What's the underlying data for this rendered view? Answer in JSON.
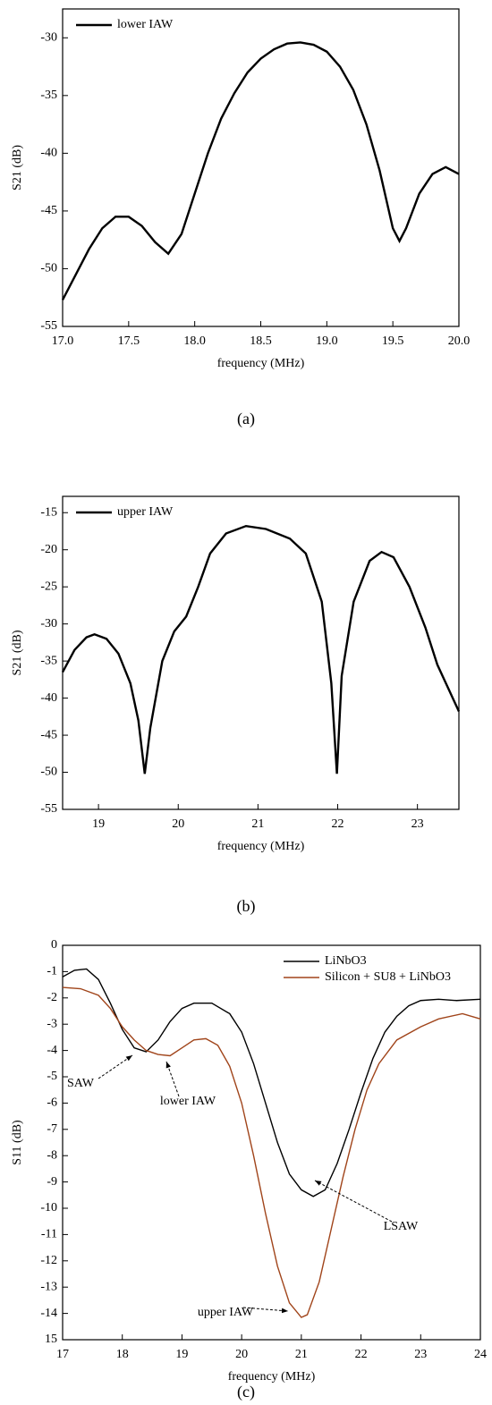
{
  "chart_data": [
    {
      "type": "line",
      "caption": "(a)",
      "xlabel": "frequency (MHz)",
      "ylabel": "S21 (dB)",
      "legend": "upper left",
      "xlim": [
        17,
        20
      ],
      "ylim": [
        -55,
        -27.5
      ],
      "xticks": [
        {
          "value": 17,
          "label": "17.0"
        },
        17.5,
        {
          "value": 18,
          "label": "18.0"
        },
        18.5,
        {
          "value": 19,
          "label": "19.0"
        },
        19.5,
        {
          "value": 20,
          "label": "20.0"
        }
      ],
      "yticks": [
        -55,
        -50,
        -45,
        -40,
        -35,
        -30
      ],
      "x": [
        17.0,
        17.1,
        17.2,
        17.3,
        17.4,
        17.5,
        17.6,
        17.7,
        17.8,
        17.9,
        18.0,
        18.1,
        18.2,
        18.3,
        18.4,
        18.5,
        18.6,
        18.7,
        18.8,
        18.9,
        19.0,
        19.1,
        19.2,
        19.3,
        19.4,
        19.5,
        19.55,
        19.6,
        19.7,
        19.8,
        19.9,
        20.0
      ],
      "series": [
        {
          "name": "lower IAW",
          "color": "#000000",
          "values": [
            -52.7,
            -50.5,
            -48.3,
            -46.5,
            -45.5,
            -45.5,
            -46.3,
            -47.7,
            -48.7,
            -47,
            -43.5,
            -40,
            -37,
            -34.8,
            -33,
            -31.8,
            -31,
            -30.5,
            -30.4,
            -30.6,
            -31.2,
            -32.5,
            -34.5,
            -37.5,
            -41.5,
            -46.5,
            -47.6,
            -46.5,
            -43.5,
            -41.8,
            -41.2,
            -41.8
          ]
        }
      ]
    },
    {
      "type": "line",
      "caption": "(b)",
      "xlabel": "frequency (MHz)",
      "ylabel": "S21 (dB)",
      "legend": "upper left",
      "xlim": [
        18.55,
        23.52
      ],
      "ylim": [
        -55,
        -12.8
      ],
      "xticks": [
        19,
        20,
        21,
        22,
        23
      ],
      "yticks": [
        -55,
        -50,
        -45,
        -40,
        -35,
        -30,
        -25,
        -20,
        -15
      ],
      "x": [
        18.55,
        18.7,
        18.85,
        18.95,
        19.1,
        19.25,
        19.4,
        19.5,
        19.58,
        19.65,
        19.8,
        19.95,
        20.1,
        20.25,
        20.4,
        20.6,
        20.85,
        21.1,
        21.4,
        21.6,
        21.8,
        21.92,
        21.99,
        22.05,
        22.2,
        22.4,
        22.55,
        22.7,
        22.9,
        23.1,
        23.25,
        23.4,
        23.52
      ],
      "series": [
        {
          "name": "upper IAW",
          "color": "#000000",
          "values": [
            -36.5,
            -33.5,
            -31.8,
            -31.4,
            -32,
            -34,
            -38,
            -43,
            -50.2,
            -44,
            -35,
            -31,
            -29,
            -25,
            -20.5,
            -17.8,
            -16.8,
            -17.2,
            -18.5,
            -20.5,
            -27,
            -38,
            -50.2,
            -37,
            -27,
            -21.5,
            -20.3,
            -21,
            -25,
            -30.5,
            -35.5,
            -39,
            -41.8
          ]
        }
      ]
    },
    {
      "type": "line",
      "caption": "(c)",
      "xlabel": "frequency (MHz)",
      "ylabel": "S11 (dB)",
      "legend": "upper right",
      "xlim": [
        17,
        24
      ],
      "ylim": [
        -15,
        0
      ],
      "xticks": [
        17,
        18,
        19,
        20,
        21,
        22,
        23,
        24
      ],
      "yticks": [
        0,
        -1,
        -2,
        -3,
        -4,
        -5,
        -6,
        -7,
        -8,
        -9,
        -10,
        -11,
        -12,
        -13,
        -14,
        {
          "value": -15,
          "label": "15"
        }
      ],
      "series": [
        {
          "name": "LiNbO3",
          "color": "#000000",
          "x": [
            17,
            17.2,
            17.4,
            17.6,
            17.8,
            18,
            18.2,
            18.4,
            18.6,
            18.8,
            19,
            19.2,
            19.5,
            19.8,
            20,
            20.2,
            20.4,
            20.6,
            20.8,
            21,
            21.2,
            21.4,
            21.6,
            21.8,
            22,
            22.2,
            22.4,
            22.6,
            22.8,
            23,
            23.3,
            23.6,
            24
          ],
          "values": [
            -1.2,
            -0.95,
            -0.9,
            -1.3,
            -2.2,
            -3.2,
            -3.9,
            -4.05,
            -3.6,
            -2.9,
            -2.4,
            -2.2,
            -2.2,
            -2.6,
            -3.3,
            -4.5,
            -6,
            -7.5,
            -8.7,
            -9.3,
            -9.55,
            -9.3,
            -8.3,
            -7,
            -5.6,
            -4.3,
            -3.3,
            -2.7,
            -2.3,
            -2.1,
            -2.05,
            -2.1,
            -2.05
          ]
        },
        {
          "name": "Silicon + SU8 + LiNbO3",
          "color": "#a0441a",
          "x": [
            17,
            17.3,
            17.6,
            17.8,
            18,
            18.2,
            18.4,
            18.6,
            18.8,
            19,
            19.2,
            19.4,
            19.6,
            19.8,
            20,
            20.2,
            20.4,
            20.6,
            20.8,
            21,
            21.1,
            21.3,
            21.5,
            21.7,
            21.9,
            22.1,
            22.3,
            22.6,
            23,
            23.3,
            23.7,
            24
          ],
          "values": [
            -1.6,
            -1.65,
            -1.9,
            -2.4,
            -3.1,
            -3.6,
            -4,
            -4.15,
            -4.2,
            -3.9,
            -3.6,
            -3.55,
            -3.8,
            -4.6,
            -6,
            -8,
            -10.2,
            -12.2,
            -13.6,
            -14.15,
            -14.05,
            -12.8,
            -10.8,
            -8.8,
            -7,
            -5.5,
            -4.5,
            -3.6,
            -3.1,
            -2.8,
            -2.6,
            -2.8
          ]
        }
      ],
      "annotations": [
        {
          "text": "SAW",
          "color": "#000000"
        },
        {
          "text": "lower IAW",
          "color": "#a0441a"
        },
        {
          "text": "LSAW",
          "color": "#000000"
        },
        {
          "text": "upper IAW",
          "color": "#a0441a"
        }
      ]
    }
  ]
}
